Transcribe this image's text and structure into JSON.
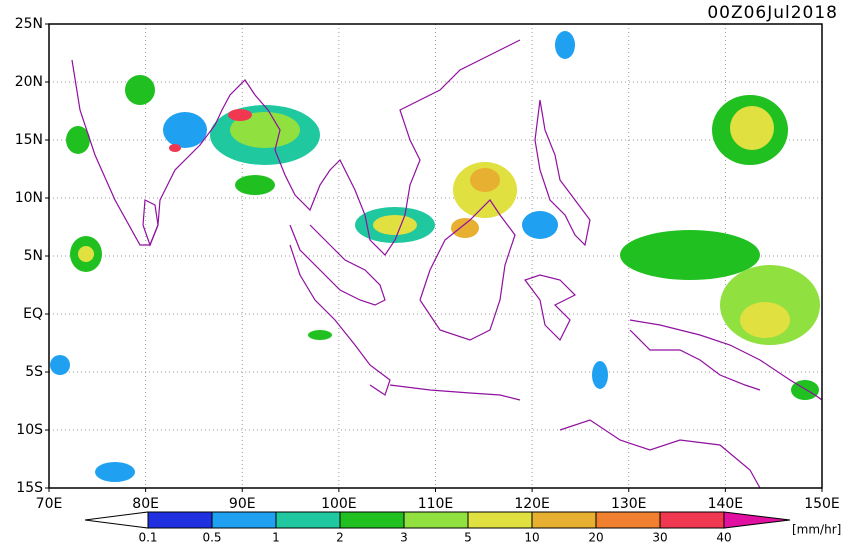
{
  "title": "00Z06Jul2018",
  "lat_labels": [
    "25N",
    "20N",
    "15N",
    "10N",
    "5N",
    "EQ",
    "5S",
    "10S",
    "15S"
  ],
  "lon_labels": [
    "70E",
    "80E",
    "90E",
    "100E",
    "110E",
    "120E",
    "130E",
    "140E",
    "150E"
  ],
  "colorbar": {
    "labels": [
      "0.1",
      "0.5",
      "1",
      "2",
      "3",
      "5",
      "10",
      "20",
      "30",
      "40"
    ],
    "unit": "[mm/hr]"
  }
}
